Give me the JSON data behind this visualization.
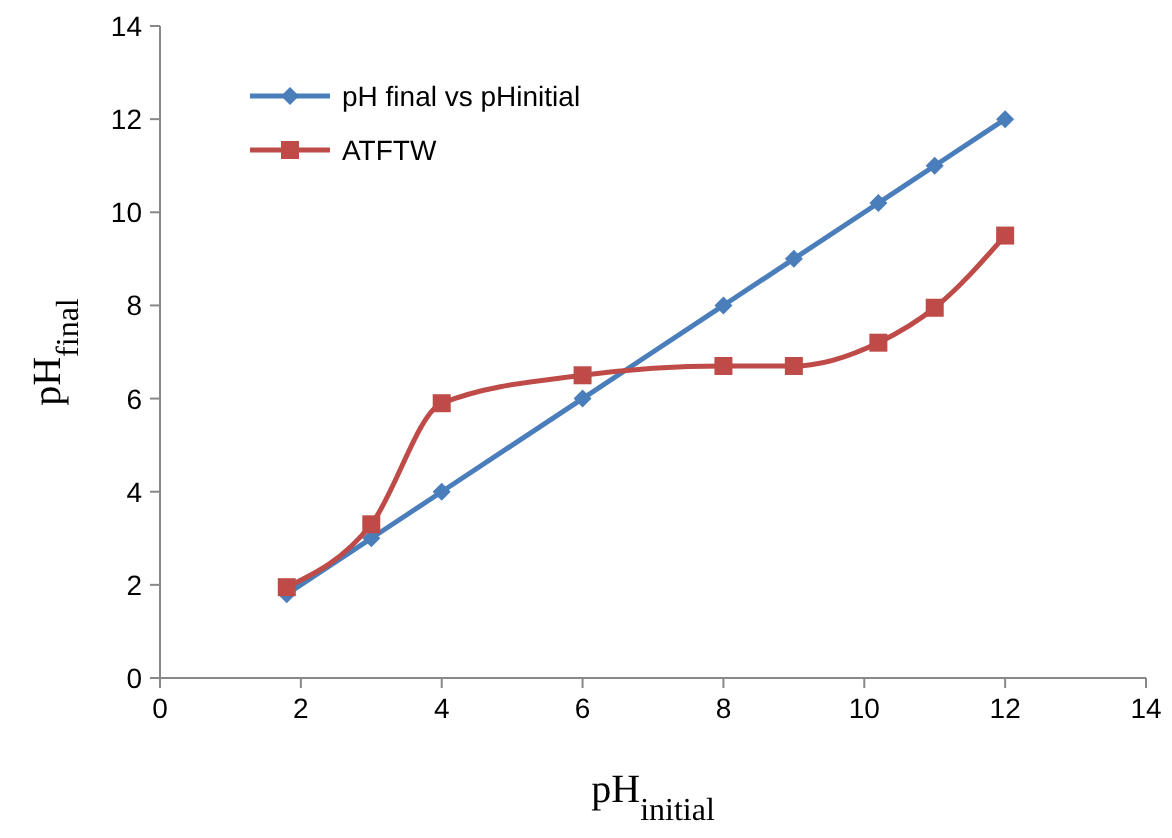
{
  "chart_data": {
    "type": "line",
    "xlabel": "pH$_{initial}$",
    "ylabel": "pH$_{final}$",
    "xlim": [
      0,
      14
    ],
    "xticks": [
      0,
      2,
      4,
      6,
      8,
      10,
      12,
      14
    ],
    "ylim": [
      0,
      14
    ],
    "yticks": [
      0,
      2,
      4,
      6,
      8,
      10,
      12,
      14
    ],
    "legend": "top left",
    "grid": false,
    "series": [
      {
        "name": "pH final vs pHinitial",
        "color": "#4a7ebb",
        "marker": "diamond",
        "line_style": "solid",
        "x": [
          1.8,
          3,
          4,
          6,
          8,
          9,
          10.2,
          11,
          12
        ],
        "values": [
          1.8,
          3,
          4,
          6,
          8,
          9,
          10.2,
          11,
          12
        ]
      },
      {
        "name": "ATFTW",
        "color": "#be4b48",
        "marker": "square",
        "line_style": "solid",
        "x": [
          1.8,
          3,
          4,
          6,
          8,
          9,
          10.2,
          11,
          12
        ],
        "values": [
          1.95,
          3.3,
          5.9,
          6.5,
          6.7,
          6.7,
          7.2,
          7.95,
          9.5
        ]
      }
    ]
  }
}
